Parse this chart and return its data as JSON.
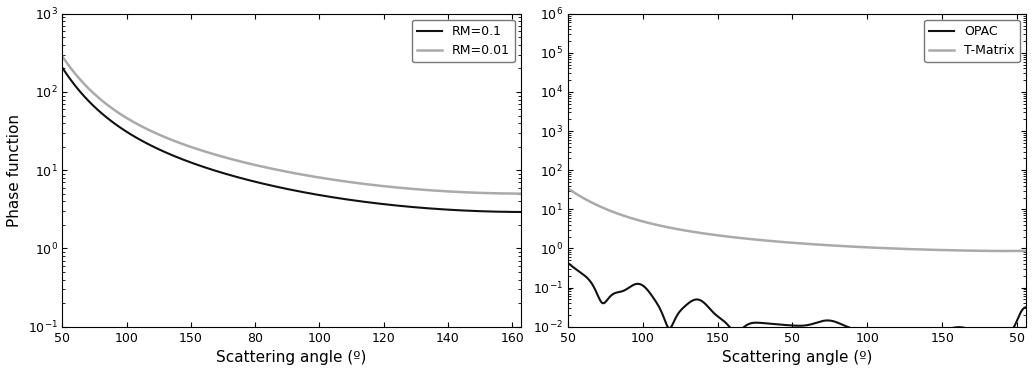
{
  "left_ylabel": "Phase function",
  "left_xlabel": "Scattering angle (º)",
  "right_xlabel": "Scattering angle (º)",
  "left_ylim": [
    0.1,
    1000
  ],
  "right_ylim": [
    0.01,
    1000000
  ],
  "left_xtick_labels": [
    "50",
    "100",
    "150",
    "80",
    "100",
    "120",
    "140",
    "160"
  ],
  "right_xtick_labels": [
    "50",
    "100",
    "150",
    "50",
    "100",
    "150",
    "50"
  ],
  "left_legend": [
    "RM=0.1",
    "RM=0.01"
  ],
  "right_legend": [
    "OPAC",
    "T-Matrix"
  ],
  "line_color_dark": "#111111",
  "line_color_gray": "#aaaaaa",
  "background_color": "#ffffff",
  "lw_dark": 1.5,
  "lw_gray": 1.8
}
